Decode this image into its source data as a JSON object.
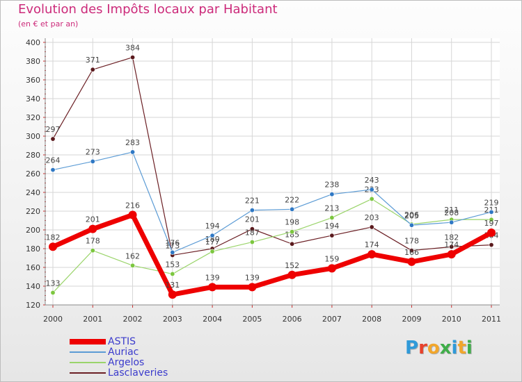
{
  "title": "Evolution des Impôts locaux par Habitant",
  "subtitle": "(en € et par an)",
  "logo": {
    "text": "Proxiti",
    "colors": [
      "#2f9ad9",
      "#e8412b",
      "#f2a62b",
      "#3fae49",
      "#2f9ad9",
      "#f2a62b",
      "#3fae49"
    ]
  },
  "chart_data": {
    "type": "line",
    "title": "Evolution des Impôts locaux par Habitant",
    "subtitle": "(en € et par an)",
    "xlabel": "",
    "ylabel": "",
    "x": [
      "2000",
      "2001",
      "2002",
      "2003",
      "2004",
      "2005",
      "2006",
      "2007",
      "2008",
      "2009",
      "2010",
      "2011"
    ],
    "ylim": [
      120,
      400
    ],
    "yticks": [
      120,
      140,
      160,
      180,
      200,
      220,
      240,
      260,
      280,
      300,
      320,
      340,
      360,
      380,
      400
    ],
    "grid": true,
    "legend_position": "bottom-left",
    "series": [
      {
        "name": "Lasclaveries",
        "color": "#6b1f24",
        "marker": "#5a1a1d",
        "width": 1.2,
        "values": [
          297,
          371,
          384,
          173,
          180,
          201,
          185,
          194,
          203,
          178,
          182,
          184
        ],
        "labels": [
          "297",
          "371",
          "384",
          "173",
          "180",
          "201",
          "185",
          "194",
          "203",
          "178",
          "182",
          "184"
        ]
      },
      {
        "name": "Argelos",
        "color": "#9ad46a",
        "marker": "#7cc63f",
        "width": 1.2,
        "values": [
          133,
          178,
          162,
          153,
          177,
          187,
          198,
          213,
          233,
          206,
          211,
          211
        ],
        "labels": [
          "133",
          "178",
          "162",
          "153",
          "177",
          "187",
          "198",
          "213",
          "233",
          "206",
          "211",
          "211"
        ]
      },
      {
        "name": "Auriac",
        "color": "#5b9bd5",
        "marker": "#2f78c4",
        "width": 1.2,
        "values": [
          264,
          273,
          283,
          176,
          194,
          221,
          222,
          238,
          243,
          205,
          208,
          219
        ],
        "labels": [
          "264",
          "273",
          "283",
          "176",
          "194",
          "221",
          "222",
          "238",
          "243",
          "205",
          "208",
          "219"
        ]
      },
      {
        "name": "ASTIS",
        "color": "#ee0000",
        "marker": "#ee0000",
        "width": 7,
        "values": [
          182,
          201,
          216,
          131,
          139,
          139,
          152,
          159,
          174,
          166,
          174,
          197
        ],
        "labels": [
          "182",
          "201",
          "216",
          "131",
          "139",
          "139",
          "152",
          "159",
          "174",
          "166",
          "174",
          "197"
        ]
      }
    ],
    "legend": [
      {
        "name": "ASTIS",
        "color": "#ee0000",
        "thick": true
      },
      {
        "name": "Auriac",
        "color": "#5b9bd5",
        "thick": false
      },
      {
        "name": "Argelos",
        "color": "#9ad46a",
        "thick": false
      },
      {
        "name": "Lasclaveries",
        "color": "#6b1f24",
        "thick": false
      }
    ]
  }
}
